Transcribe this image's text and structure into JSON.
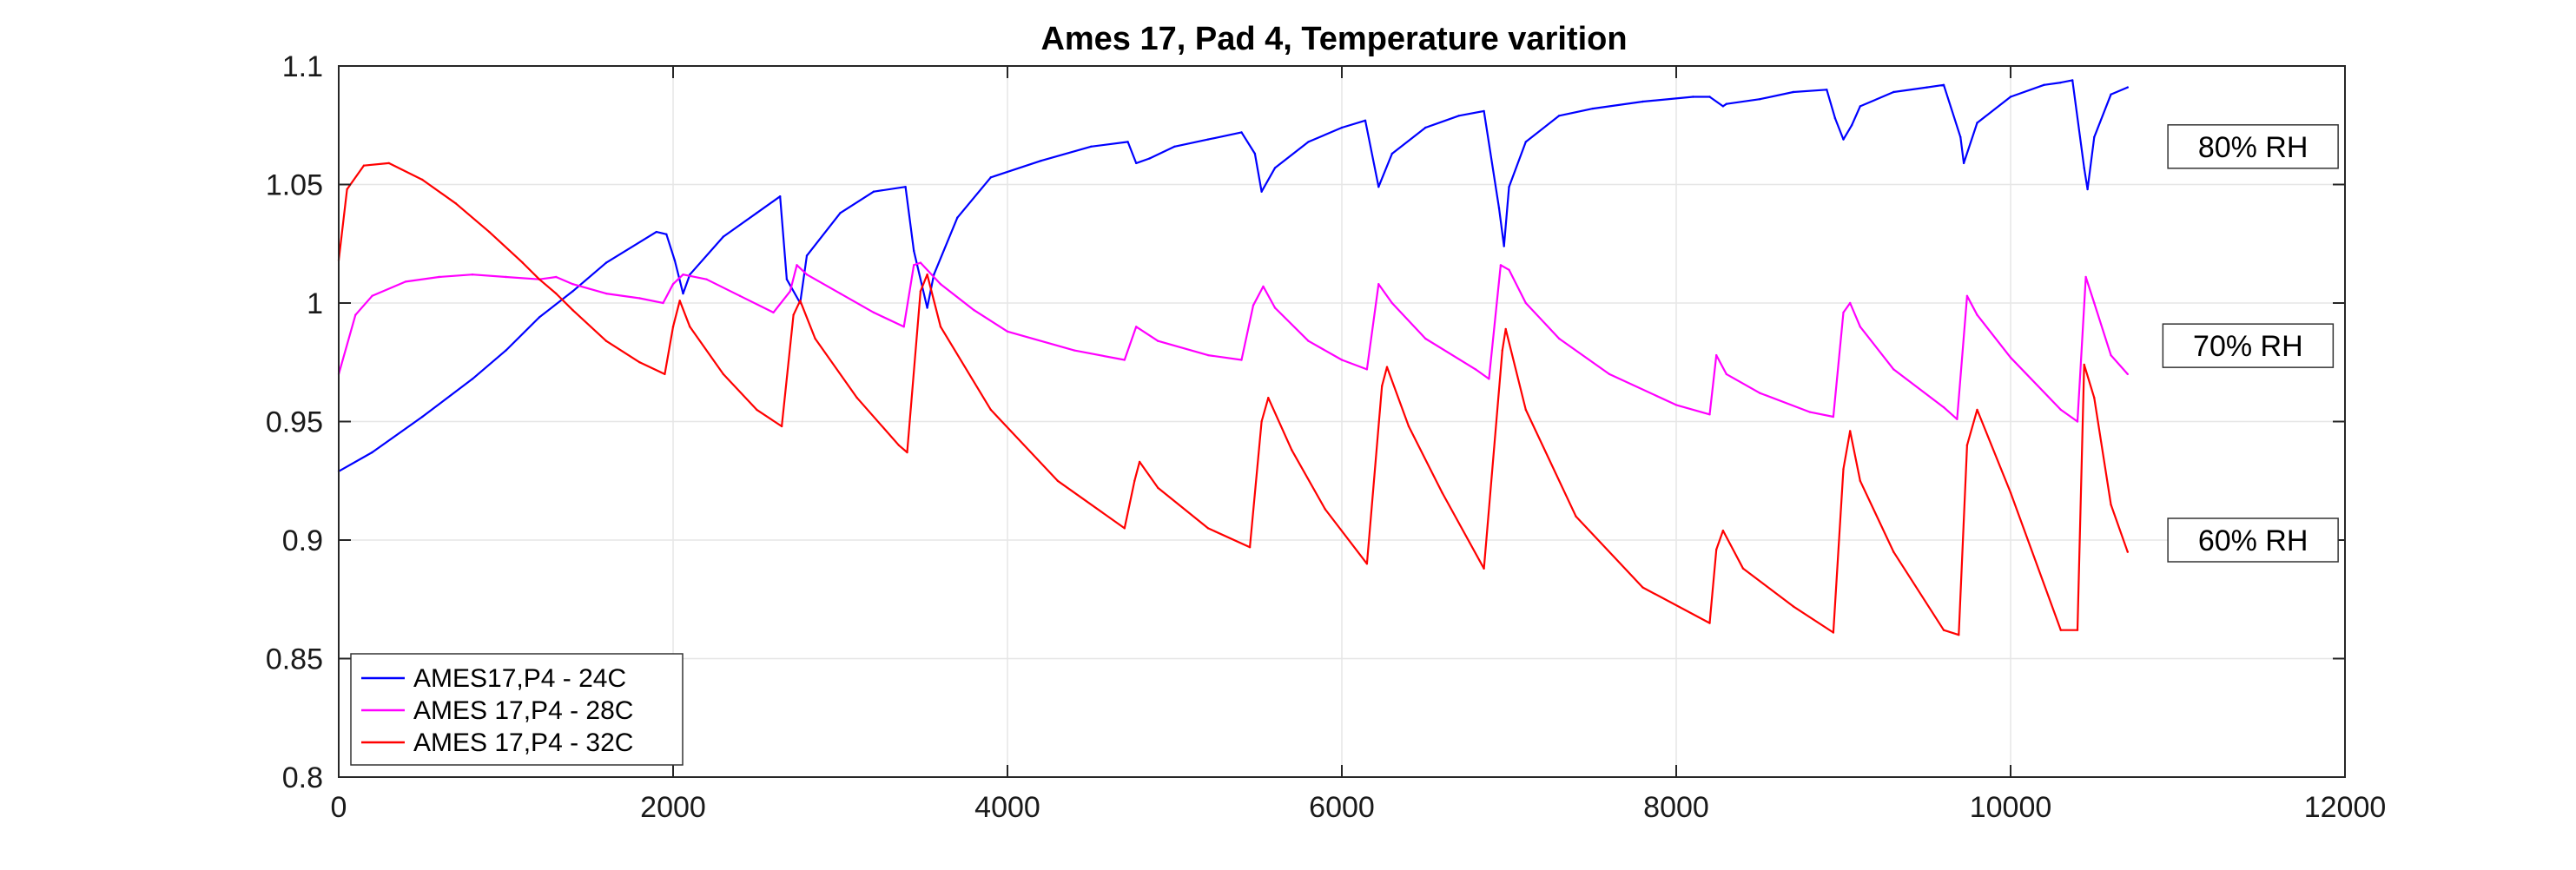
{
  "chart_data": {
    "type": "line",
    "title": "Ames 17, Pad 4, Temperature varition",
    "xlabel": "",
    "ylabel": "",
    "xlim": [
      0,
      12000
    ],
    "ylim": [
      0.8,
      1.1
    ],
    "xticks": [
      0,
      2000,
      4000,
      6000,
      8000,
      10000,
      12000
    ],
    "yticks": [
      0.8,
      0.85,
      0.9,
      0.95,
      1,
      1.05,
      1.1
    ],
    "xtick_labels": [
      "0",
      "2000",
      "4000",
      "6000",
      "8000",
      "10000",
      "12000"
    ],
    "ytick_labels": [
      "0.8",
      "0.85",
      "0.9",
      "0.95",
      "1",
      "1.05",
      "1.1"
    ],
    "grid": true,
    "legend_position": "bottom-left",
    "annotations": [
      {
        "text": "80% RH",
        "x": 11450,
        "y": 1.066
      },
      {
        "text": "70% RH",
        "x": 11420,
        "y": 0.982
      },
      {
        "text": "60% RH",
        "x": 11450,
        "y": 0.9
      }
    ],
    "series": [
      {
        "name": "AMES17,P4 - 24C",
        "color": "#0000ff",
        "x": [
          0,
          200,
          500,
          800,
          1000,
          1200,
          1400,
          1600,
          1900,
          1960,
          2010,
          2060,
          2100,
          2300,
          2500,
          2640,
          2680,
          2760,
          2800,
          3000,
          3200,
          3390,
          3440,
          3520,
          3560,
          3700,
          3900,
          4200,
          4500,
          4720,
          4770,
          4850,
          5000,
          5200,
          5400,
          5480,
          5520,
          5600,
          5800,
          6000,
          6140,
          6220,
          6300,
          6500,
          6700,
          6850,
          6940,
          6970,
          7000,
          7100,
          7300,
          7500,
          7800,
          8100,
          8200,
          8280,
          8300,
          8500,
          8700,
          8900,
          8950,
          9000,
          9050,
          9100,
          9300,
          9500,
          9600,
          9700,
          9720,
          9800,
          10000,
          10200,
          10300,
          10370,
          10440,
          10460,
          10500,
          10600,
          10700
        ],
        "values": [
          0.929,
          0.937,
          0.952,
          0.968,
          0.98,
          0.994,
          1.005,
          1.017,
          1.03,
          1.029,
          1.018,
          1.004,
          1.012,
          1.028,
          1.038,
          1.045,
          1.01,
          1.0,
          1.02,
          1.038,
          1.047,
          1.049,
          1.022,
          0.998,
          1.012,
          1.036,
          1.053,
          1.06,
          1.066,
          1.068,
          1.059,
          1.061,
          1.066,
          1.069,
          1.072,
          1.063,
          1.047,
          1.057,
          1.068,
          1.074,
          1.077,
          1.049,
          1.063,
          1.074,
          1.079,
          1.081,
          1.04,
          1.024,
          1.049,
          1.068,
          1.079,
          1.082,
          1.085,
          1.087,
          1.087,
          1.083,
          1.084,
          1.086,
          1.089,
          1.09,
          1.078,
          1.069,
          1.075,
          1.083,
          1.089,
          1.091,
          1.092,
          1.07,
          1.059,
          1.076,
          1.087,
          1.092,
          1.093,
          1.094,
          1.057,
          1.048,
          1.07,
          1.088,
          1.091
        ]
      },
      {
        "name": "AMES 17,P4 - 28C",
        "color": "#ff00ff",
        "x": [
          0,
          100,
          200,
          400,
          600,
          800,
          1000,
          1200,
          1300,
          1400,
          1600,
          1800,
          1940,
          2000,
          2060,
          2200,
          2400,
          2600,
          2700,
          2740,
          2800,
          3000,
          3200,
          3380,
          3440,
          3480,
          3600,
          3800,
          4000,
          4400,
          4700,
          4770,
          4900,
          5200,
          5400,
          5470,
          5530,
          5600,
          5800,
          6000,
          6150,
          6220,
          6300,
          6500,
          6800,
          6880,
          6950,
          7000,
          7100,
          7300,
          7600,
          8000,
          8200,
          8240,
          8300,
          8500,
          8800,
          8940,
          9000,
          9040,
          9100,
          9300,
          9600,
          9680,
          9740,
          9800,
          10000,
          10300,
          10400,
          10450,
          10500,
          10600,
          10700
        ],
        "values": [
          0.97,
          0.995,
          1.003,
          1.009,
          1.011,
          1.012,
          1.011,
          1.01,
          1.011,
          1.008,
          1.004,
          1.002,
          1.0,
          1.008,
          1.012,
          1.01,
          1.003,
          0.996,
          1.005,
          1.016,
          1.012,
          1.004,
          0.996,
          0.99,
          1.016,
          1.017,
          1.008,
          0.997,
          0.988,
          0.98,
          0.976,
          0.99,
          0.984,
          0.978,
          0.976,
          0.999,
          1.007,
          0.998,
          0.984,
          0.976,
          0.972,
          1.008,
          1.0,
          0.985,
          0.972,
          0.968,
          1.016,
          1.014,
          1.0,
          0.985,
          0.97,
          0.957,
          0.953,
          0.978,
          0.97,
          0.962,
          0.954,
          0.952,
          0.996,
          1.0,
          0.99,
          0.972,
          0.956,
          0.951,
          1.003,
          0.995,
          0.977,
          0.955,
          0.95,
          1.011,
          1.0,
          0.978,
          0.97
        ]
      },
      {
        "name": "AMES 17,P4 - 32C",
        "color": "#ff0000",
        "x": [
          0,
          50,
          150,
          300,
          500,
          700,
          900,
          1100,
          1200,
          1300,
          1400,
          1600,
          1800,
          1950,
          2000,
          2040,
          2100,
          2300,
          2500,
          2650,
          2720,
          2760,
          2850,
          3100,
          3350,
          3400,
          3480,
          3520,
          3600,
          3900,
          4300,
          4700,
          4760,
          4790,
          4900,
          5200,
          5450,
          5520,
          5560,
          5700,
          5900,
          6150,
          6240,
          6270,
          6400,
          6600,
          6850,
          6960,
          6980,
          7100,
          7400,
          7800,
          8200,
          8240,
          8280,
          8400,
          8700,
          8940,
          9000,
          9040,
          9100,
          9300,
          9600,
          9690,
          9740,
          9800,
          10000,
          10300,
          10400,
          10440,
          10500,
          10600,
          10700
        ],
        "values": [
          1.018,
          1.048,
          1.058,
          1.059,
          1.052,
          1.042,
          1.03,
          1.017,
          1.01,
          1.004,
          0.997,
          0.984,
          0.975,
          0.97,
          0.99,
          1.001,
          0.99,
          0.97,
          0.955,
          0.948,
          0.995,
          1.001,
          0.985,
          0.96,
          0.94,
          0.937,
          1.005,
          1.012,
          0.99,
          0.955,
          0.925,
          0.905,
          0.925,
          0.933,
          0.922,
          0.905,
          0.897,
          0.95,
          0.96,
          0.938,
          0.913,
          0.89,
          0.965,
          0.973,
          0.948,
          0.92,
          0.888,
          0.98,
          0.989,
          0.955,
          0.91,
          0.88,
          0.865,
          0.896,
          0.904,
          0.888,
          0.872,
          0.861,
          0.93,
          0.946,
          0.925,
          0.895,
          0.862,
          0.86,
          0.94,
          0.955,
          0.92,
          0.862,
          0.862,
          0.974,
          0.96,
          0.915,
          0.895
        ]
      }
    ]
  }
}
